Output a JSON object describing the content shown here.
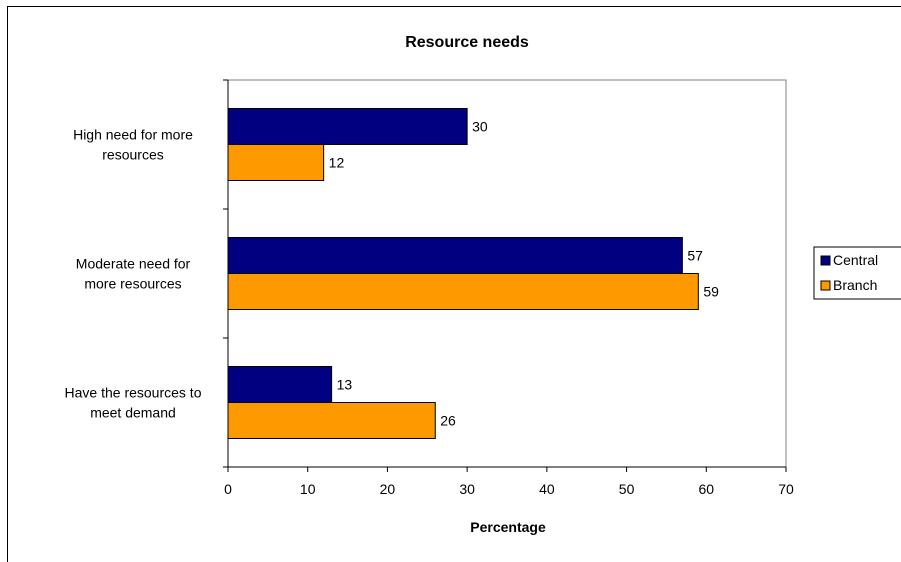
{
  "chart_data": {
    "type": "bar",
    "orientation": "horizontal",
    "title": "Resource needs",
    "xlabel": "Percentage",
    "ylabel": "",
    "xlim": [
      0,
      70
    ],
    "x_ticks": [
      0,
      10,
      20,
      30,
      40,
      50,
      60,
      70
    ],
    "categories": [
      "High need for more resources",
      "Moderate need for more resources",
      "Have the resources to meet demand"
    ],
    "category_lines": [
      [
        "High need for more",
        "resources"
      ],
      [
        "Moderate need for",
        "more resources"
      ],
      [
        "Have the resources to",
        "meet demand"
      ]
    ],
    "series": [
      {
        "name": "Central",
        "color": "#000080",
        "values": [
          30,
          57,
          13
        ]
      },
      {
        "name": "Branch",
        "color": "#FF9900",
        "values": [
          12,
          59,
          26
        ]
      }
    ],
    "data_labels": true,
    "grid": false,
    "legend_position": "right"
  }
}
